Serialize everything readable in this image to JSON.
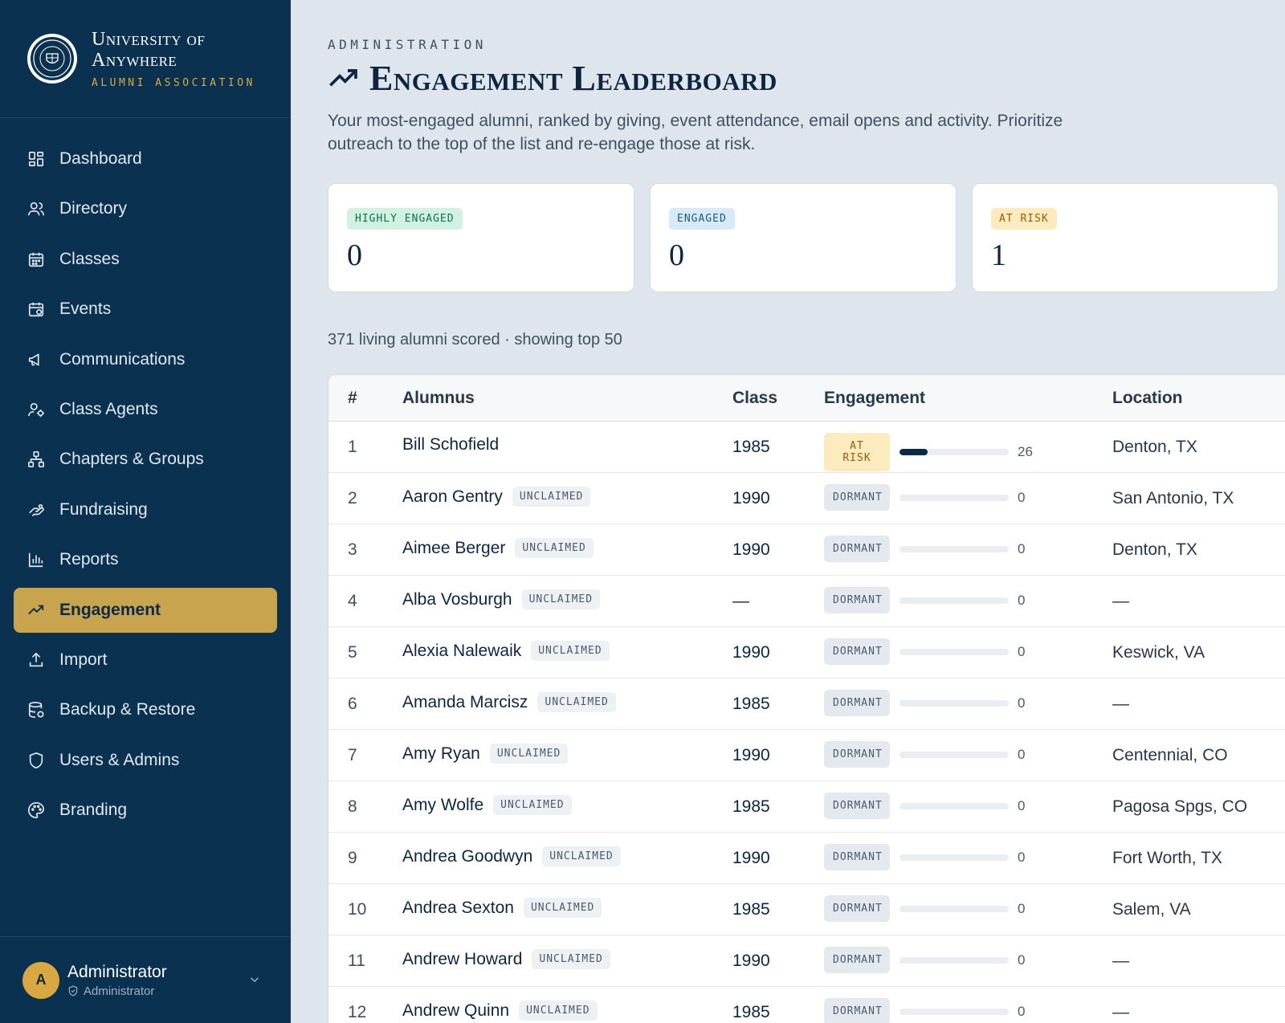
{
  "brand": {
    "name_line1": "University of",
    "name_line2": "Anywhere",
    "subtitle": "ALUMNI ASSOCIATION"
  },
  "nav": [
    {
      "label": "Dashboard",
      "icon": "dashboard-icon"
    },
    {
      "label": "Directory",
      "icon": "users-icon"
    },
    {
      "label": "Classes",
      "icon": "calendar-grid-icon"
    },
    {
      "label": "Events",
      "icon": "calendar-check-icon"
    },
    {
      "label": "Communications",
      "icon": "megaphone-icon"
    },
    {
      "label": "Class Agents",
      "icon": "user-cog-icon"
    },
    {
      "label": "Chapters & Groups",
      "icon": "network-icon"
    },
    {
      "label": "Fundraising",
      "icon": "hand-heart-icon"
    },
    {
      "label": "Reports",
      "icon": "bar-chart-icon"
    },
    {
      "label": "Engagement",
      "icon": "trending-up-icon",
      "active": true
    },
    {
      "label": "Import",
      "icon": "upload-icon"
    },
    {
      "label": "Backup & Restore",
      "icon": "database-icon"
    },
    {
      "label": "Users & Admins",
      "icon": "shield-icon"
    },
    {
      "label": "Branding",
      "icon": "palette-icon"
    }
  ],
  "user": {
    "initial": "A",
    "name": "Administrator",
    "role": "Administrator"
  },
  "page": {
    "eyebrow": "ADMINISTRATION",
    "title": "Engagement Leaderboard",
    "description": "Your most-engaged alumni, ranked by giving, event attendance, email opens and activity. Prioritize outreach to the top of the list and re-engage those at risk."
  },
  "stats": [
    {
      "label": "HIGHLY ENGAGED",
      "value": "0"
    },
    {
      "label": "ENGAGED",
      "value": "0"
    },
    {
      "label": "AT RISK",
      "value": "1"
    }
  ],
  "summary": "371 living alumni scored · showing top 50",
  "table": {
    "headers": {
      "rank": "#",
      "alumnus": "Alumnus",
      "class": "Class",
      "engagement": "Engagement",
      "location": "Location"
    },
    "rows": [
      {
        "rank": "1",
        "name": "Bill Schofield",
        "tag": "",
        "class": "1985",
        "status": "AT RISK",
        "score": 26,
        "location": "Denton, TX"
      },
      {
        "rank": "2",
        "name": "Aaron Gentry",
        "tag": "UNCLAIMED",
        "class": "1990",
        "status": "DORMANT",
        "score": 0,
        "location": "San Antonio, TX"
      },
      {
        "rank": "3",
        "name": "Aimee Berger",
        "tag": "UNCLAIMED",
        "class": "1990",
        "status": "DORMANT",
        "score": 0,
        "location": "Denton, TX"
      },
      {
        "rank": "4",
        "name": "Alba Vosburgh",
        "tag": "UNCLAIMED",
        "class": "—",
        "status": "DORMANT",
        "score": 0,
        "location": "—"
      },
      {
        "rank": "5",
        "name": "Alexia Nalewaik",
        "tag": "UNCLAIMED",
        "class": "1990",
        "status": "DORMANT",
        "score": 0,
        "location": "Keswick, VA"
      },
      {
        "rank": "6",
        "name": "Amanda Marcisz",
        "tag": "UNCLAIMED",
        "class": "1985",
        "status": "DORMANT",
        "score": 0,
        "location": "—"
      },
      {
        "rank": "7",
        "name": "Amy Ryan",
        "tag": "UNCLAIMED",
        "class": "1990",
        "status": "DORMANT",
        "score": 0,
        "location": "Centennial, CO"
      },
      {
        "rank": "8",
        "name": "Amy Wolfe",
        "tag": "UNCLAIMED",
        "class": "1985",
        "status": "DORMANT",
        "score": 0,
        "location": "Pagosa Spgs, CO"
      },
      {
        "rank": "9",
        "name": "Andrea Goodwyn",
        "tag": "UNCLAIMED",
        "class": "1990",
        "status": "DORMANT",
        "score": 0,
        "location": "Fort Worth, TX"
      },
      {
        "rank": "10",
        "name": "Andrea Sexton",
        "tag": "UNCLAIMED",
        "class": "1985",
        "status": "DORMANT",
        "score": 0,
        "location": "Salem, VA"
      },
      {
        "rank": "11",
        "name": "Andrew Howard",
        "tag": "UNCLAIMED",
        "class": "1990",
        "status": "DORMANT",
        "score": 0,
        "location": "—"
      },
      {
        "rank": "12",
        "name": "Andrew Quinn",
        "tag": "UNCLAIMED",
        "class": "1985",
        "status": "DORMANT",
        "score": 0,
        "location": "—"
      }
    ]
  }
}
